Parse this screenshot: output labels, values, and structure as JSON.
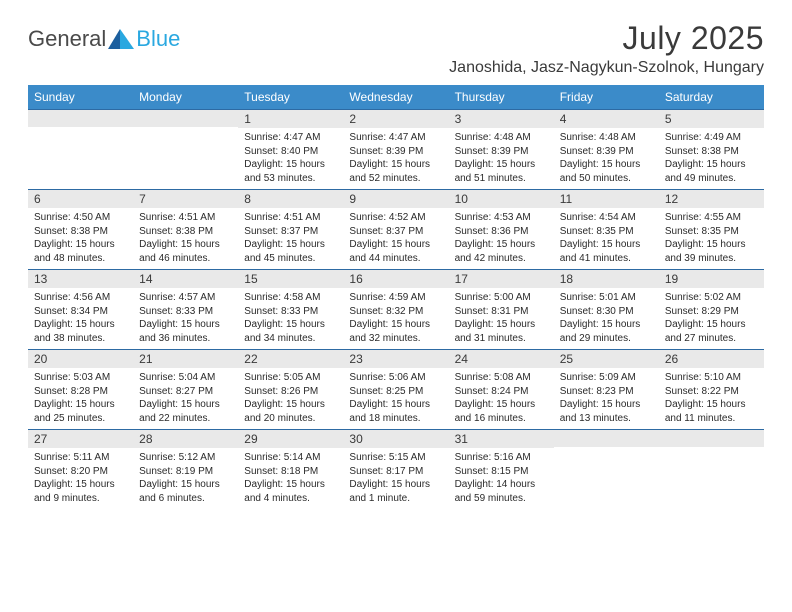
{
  "logo": {
    "text1": "General",
    "text2": "Blue"
  },
  "title": "July 2025",
  "location": "Janoshida, Jasz-Nagykun-Szolnok, Hungary",
  "colors": {
    "header_bar": "#3b8bc9",
    "week_rule": "#2d6aa3",
    "daynum_bg": "#e9e9e9",
    "logo_blue": "#2aa8e0",
    "text": "#3a3a3a"
  },
  "dow": [
    "Sunday",
    "Monday",
    "Tuesday",
    "Wednesday",
    "Thursday",
    "Friday",
    "Saturday"
  ],
  "weeks": [
    [
      null,
      null,
      {
        "n": "1",
        "sr": "4:47 AM",
        "ss": "8:40 PM",
        "dl": "15 hours and 53 minutes."
      },
      {
        "n": "2",
        "sr": "4:47 AM",
        "ss": "8:39 PM",
        "dl": "15 hours and 52 minutes."
      },
      {
        "n": "3",
        "sr": "4:48 AM",
        "ss": "8:39 PM",
        "dl": "15 hours and 51 minutes."
      },
      {
        "n": "4",
        "sr": "4:48 AM",
        "ss": "8:39 PM",
        "dl": "15 hours and 50 minutes."
      },
      {
        "n": "5",
        "sr": "4:49 AM",
        "ss": "8:38 PM",
        "dl": "15 hours and 49 minutes."
      }
    ],
    [
      {
        "n": "6",
        "sr": "4:50 AM",
        "ss": "8:38 PM",
        "dl": "15 hours and 48 minutes."
      },
      {
        "n": "7",
        "sr": "4:51 AM",
        "ss": "8:38 PM",
        "dl": "15 hours and 46 minutes."
      },
      {
        "n": "8",
        "sr": "4:51 AM",
        "ss": "8:37 PM",
        "dl": "15 hours and 45 minutes."
      },
      {
        "n": "9",
        "sr": "4:52 AM",
        "ss": "8:37 PM",
        "dl": "15 hours and 44 minutes."
      },
      {
        "n": "10",
        "sr": "4:53 AM",
        "ss": "8:36 PM",
        "dl": "15 hours and 42 minutes."
      },
      {
        "n": "11",
        "sr": "4:54 AM",
        "ss": "8:35 PM",
        "dl": "15 hours and 41 minutes."
      },
      {
        "n": "12",
        "sr": "4:55 AM",
        "ss": "8:35 PM",
        "dl": "15 hours and 39 minutes."
      }
    ],
    [
      {
        "n": "13",
        "sr": "4:56 AM",
        "ss": "8:34 PM",
        "dl": "15 hours and 38 minutes."
      },
      {
        "n": "14",
        "sr": "4:57 AM",
        "ss": "8:33 PM",
        "dl": "15 hours and 36 minutes."
      },
      {
        "n": "15",
        "sr": "4:58 AM",
        "ss": "8:33 PM",
        "dl": "15 hours and 34 minutes."
      },
      {
        "n": "16",
        "sr": "4:59 AM",
        "ss": "8:32 PM",
        "dl": "15 hours and 32 minutes."
      },
      {
        "n": "17",
        "sr": "5:00 AM",
        "ss": "8:31 PM",
        "dl": "15 hours and 31 minutes."
      },
      {
        "n": "18",
        "sr": "5:01 AM",
        "ss": "8:30 PM",
        "dl": "15 hours and 29 minutes."
      },
      {
        "n": "19",
        "sr": "5:02 AM",
        "ss": "8:29 PM",
        "dl": "15 hours and 27 minutes."
      }
    ],
    [
      {
        "n": "20",
        "sr": "5:03 AM",
        "ss": "8:28 PM",
        "dl": "15 hours and 25 minutes."
      },
      {
        "n": "21",
        "sr": "5:04 AM",
        "ss": "8:27 PM",
        "dl": "15 hours and 22 minutes."
      },
      {
        "n": "22",
        "sr": "5:05 AM",
        "ss": "8:26 PM",
        "dl": "15 hours and 20 minutes."
      },
      {
        "n": "23",
        "sr": "5:06 AM",
        "ss": "8:25 PM",
        "dl": "15 hours and 18 minutes."
      },
      {
        "n": "24",
        "sr": "5:08 AM",
        "ss": "8:24 PM",
        "dl": "15 hours and 16 minutes."
      },
      {
        "n": "25",
        "sr": "5:09 AM",
        "ss": "8:23 PM",
        "dl": "15 hours and 13 minutes."
      },
      {
        "n": "26",
        "sr": "5:10 AM",
        "ss": "8:22 PM",
        "dl": "15 hours and 11 minutes."
      }
    ],
    [
      {
        "n": "27",
        "sr": "5:11 AM",
        "ss": "8:20 PM",
        "dl": "15 hours and 9 minutes."
      },
      {
        "n": "28",
        "sr": "5:12 AM",
        "ss": "8:19 PM",
        "dl": "15 hours and 6 minutes."
      },
      {
        "n": "29",
        "sr": "5:14 AM",
        "ss": "8:18 PM",
        "dl": "15 hours and 4 minutes."
      },
      {
        "n": "30",
        "sr": "5:15 AM",
        "ss": "8:17 PM",
        "dl": "15 hours and 1 minute."
      },
      {
        "n": "31",
        "sr": "5:16 AM",
        "ss": "8:15 PM",
        "dl": "14 hours and 59 minutes."
      },
      null,
      null
    ]
  ],
  "labels": {
    "sunrise": "Sunrise: ",
    "sunset": "Sunset: ",
    "daylight": "Daylight: "
  }
}
